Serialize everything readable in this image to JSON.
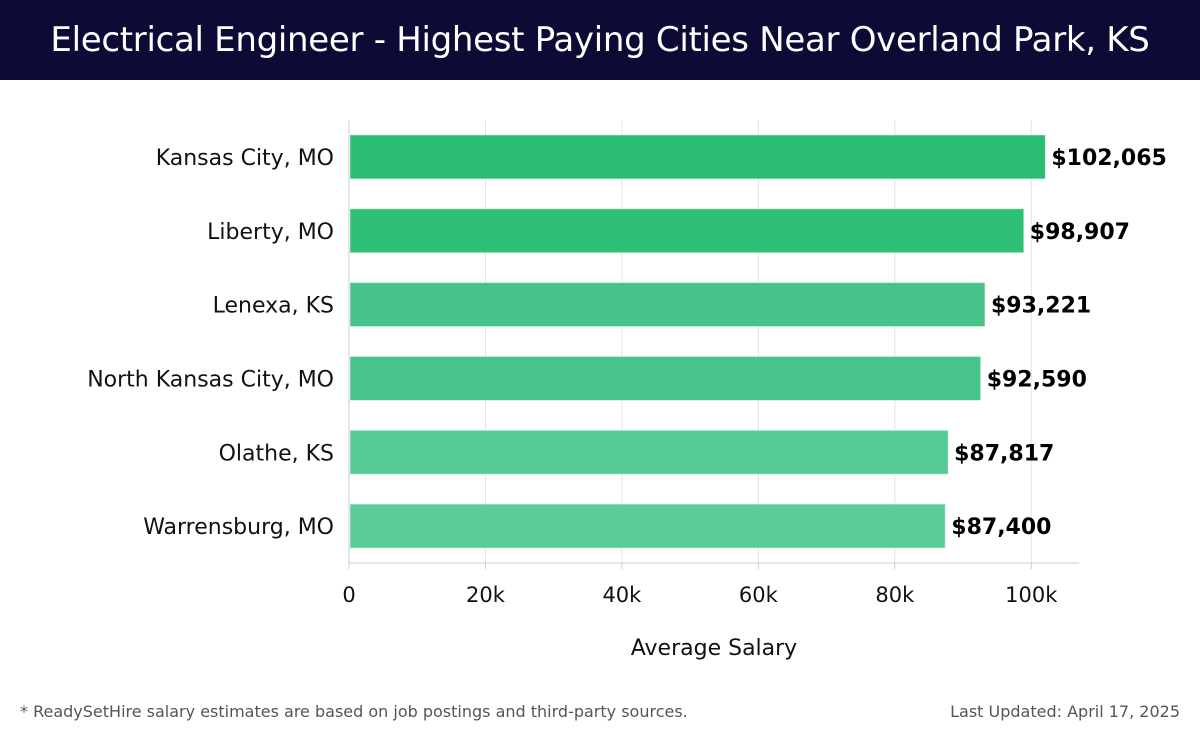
{
  "header": {
    "title": "Electrical Engineer - Highest Paying Cities Near Overland Park, KS"
  },
  "footer": {
    "note": "* ReadySetHire salary estimates are based on job postings and third-party sources.",
    "updated": "Last Updated: April 17, 2025"
  },
  "chart_data": {
    "type": "bar",
    "orientation": "horizontal",
    "title": "Electrical Engineer - Highest Paying Cities Near Overland Park, KS",
    "xlabel": "Average Salary",
    "ylabel": "",
    "xlim": [
      0,
      107000
    ],
    "grid": true,
    "categories": [
      "Kansas City, MO",
      "Liberty, MO",
      "Lenexa, KS",
      "North Kansas City, MO",
      "Olathe, KS",
      "Warrensburg, MO"
    ],
    "values": [
      102065,
      98907,
      93221,
      92590,
      87817,
      87400
    ],
    "value_labels": [
      "$102,065",
      "$98,907",
      "$93,221",
      "$92,590",
      "$87,817",
      "$87,400"
    ],
    "bar_colors": [
      "#2bbd74",
      "#2fc078",
      "#45c388",
      "#48c48a",
      "#57cb95",
      "#59cc97"
    ],
    "ticks": [
      0,
      20000,
      40000,
      60000,
      80000,
      100000
    ],
    "tick_labels": [
      "0",
      "20k",
      "40k",
      "60k",
      "80k",
      "100k"
    ]
  }
}
